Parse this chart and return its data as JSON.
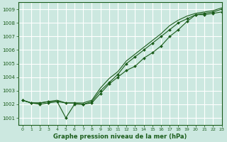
{
  "title": "Graphe pression niveau de la mer (hPa)",
  "bg_color": "#cce8e0",
  "grid_color": "#ffffff",
  "line_color": "#1a5c1a",
  "xlim": [
    -0.5,
    23
  ],
  "ylim": [
    1000.5,
    1009.5
  ],
  "yticks": [
    1001,
    1002,
    1003,
    1004,
    1005,
    1006,
    1007,
    1008,
    1009
  ],
  "xticks": [
    0,
    1,
    2,
    3,
    4,
    5,
    6,
    7,
    8,
    9,
    10,
    11,
    12,
    13,
    14,
    15,
    16,
    17,
    18,
    19,
    20,
    21,
    22,
    23
  ],
  "series1_x": [
    0,
    1,
    2,
    3,
    4,
    5,
    6,
    7,
    8,
    9,
    10,
    11,
    12,
    13,
    14,
    15,
    16,
    17,
    18,
    19,
    20,
    21,
    22,
    23
  ],
  "series1_y": [
    1002.3,
    1002.1,
    1002.0,
    1002.1,
    1002.2,
    1001.0,
    1002.0,
    1002.0,
    1002.1,
    1002.8,
    1003.5,
    1004.0,
    1004.5,
    1004.8,
    1005.4,
    1005.8,
    1006.3,
    1007.0,
    1007.5,
    1008.1,
    1008.6,
    1008.6,
    1008.7,
    1008.8
  ],
  "series2_x": [
    0,
    1,
    2,
    3,
    4,
    5,
    6,
    7,
    8,
    9,
    10,
    11,
    12,
    13,
    14,
    15,
    16,
    17,
    18,
    19,
    20,
    21,
    22,
    23
  ],
  "series2_y": [
    1002.3,
    1002.1,
    1002.1,
    1002.2,
    1002.2,
    1002.1,
    1002.1,
    1002.0,
    1002.2,
    1003.0,
    1003.6,
    1004.2,
    1005.0,
    1005.5,
    1006.0,
    1006.5,
    1007.0,
    1007.5,
    1008.0,
    1008.3,
    1008.6,
    1008.7,
    1008.8,
    1009.0
  ],
  "series3_x": [
    0,
    1,
    2,
    3,
    4,
    5,
    6,
    7,
    8,
    9,
    10,
    11,
    12,
    13,
    14,
    15,
    16,
    17,
    18,
    19,
    20,
    21,
    22,
    23
  ],
  "series3_y": [
    1002.3,
    1002.1,
    1002.1,
    1002.2,
    1002.3,
    1002.1,
    1002.1,
    1002.1,
    1002.3,
    1003.2,
    1003.9,
    1004.4,
    1005.2,
    1005.7,
    1006.2,
    1006.7,
    1007.2,
    1007.8,
    1008.2,
    1008.5,
    1008.7,
    1008.8,
    1008.9,
    1009.1
  ]
}
